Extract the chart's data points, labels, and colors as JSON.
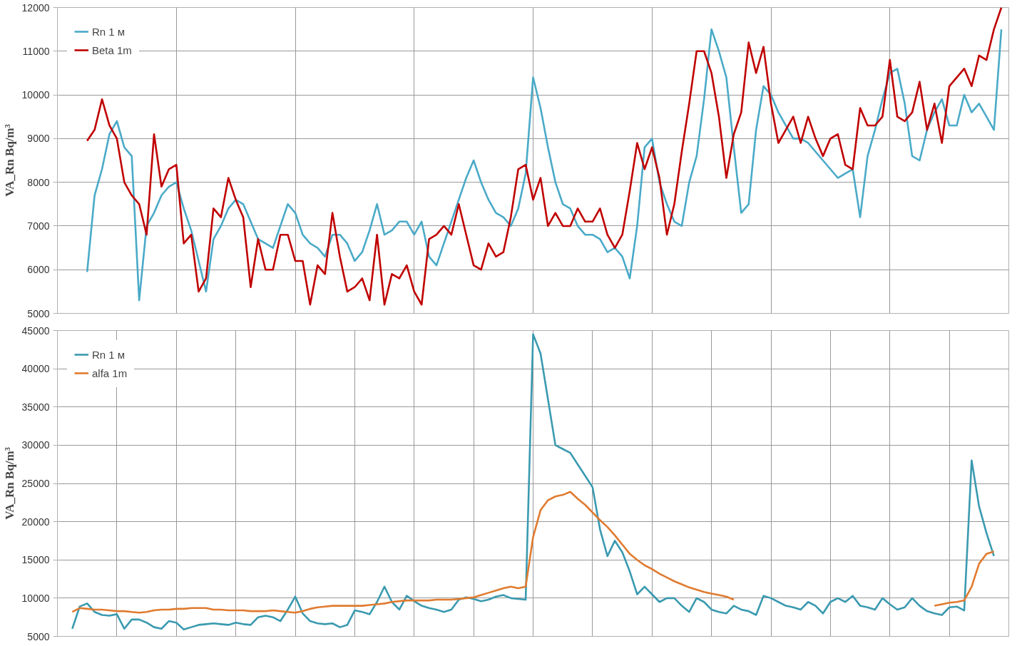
{
  "chart_data": [
    {
      "type": "line",
      "ylabel": "VA_Rn Bq/m³",
      "categories": [
        null,
        null,
        null,
        null,
        null,
        null,
        null,
        null,
        null,
        null,
        null,
        null,
        null,
        null,
        null,
        null,
        null,
        null,
        null,
        null,
        null,
        null,
        null,
        null,
        null,
        null,
        null,
        null,
        null,
        null,
        null,
        null,
        null,
        null,
        null,
        null,
        null,
        null,
        null,
        null,
        null,
        null,
        null,
        null,
        null,
        null,
        null,
        null,
        null,
        null,
        null,
        null,
        null,
        null,
        null,
        null,
        null,
        null,
        null,
        null,
        null,
        null,
        null,
        null,
        null,
        null,
        null,
        null,
        null,
        null,
        null,
        null,
        null,
        null,
        null,
        null,
        null,
        null,
        null,
        null,
        null,
        null,
        null,
        null,
        null,
        null,
        null,
        null,
        null,
        null,
        null,
        null,
        null,
        null,
        null,
        null,
        null,
        null,
        null,
        null,
        null,
        null,
        null,
        null,
        null,
        null,
        null,
        null,
        null,
        null,
        null,
        null,
        null,
        null,
        null,
        null,
        null,
        null,
        null,
        null,
        null,
        null,
        null,
        null,
        null,
        null,
        null,
        null,
        null
      ],
      "ylim": [
        5000,
        12000
      ],
      "yticks": [
        5000,
        6000,
        7000,
        8000,
        9000,
        10000,
        11000,
        12000
      ],
      "grid": true,
      "legend": "top left",
      "series": [
        {
          "name": "Rn 1 м",
          "color": "#4aaac8",
          "values": [
            null,
            null,
            null,
            null,
            5950,
            7700,
            8300,
            9100,
            9400,
            8800,
            8600,
            5300,
            7000,
            7300,
            7700,
            7900,
            8000,
            7400,
            6900,
            6200,
            5500,
            6700,
            7000,
            7400,
            7600,
            7500,
            7100,
            6700,
            6600,
            6500,
            7000,
            7500,
            7300,
            6800,
            6600,
            6500,
            6300,
            6800,
            6800,
            6600,
            6200,
            6400,
            6900,
            7500,
            6800,
            6900,
            7100,
            7100,
            6800,
            7100,
            6300,
            6100,
            6600,
            7100,
            7600,
            8100,
            8500,
            8000,
            7600,
            7300,
            7200,
            7000,
            7400,
            8200,
            10400,
            9700,
            8800,
            8000,
            7500,
            7400,
            7000,
            6800,
            6800,
            6700,
            6400,
            6500,
            6300,
            5800,
            7000,
            8800,
            9000,
            8000,
            7500,
            7100,
            7000,
            8000,
            8600,
            9900,
            11500,
            11000,
            10400,
            8800,
            7300,
            7500,
            9200,
            10200,
            10000,
            9600,
            9300,
            9000,
            9000,
            8900,
            8700,
            8500,
            8300,
            8100,
            8200,
            8300,
            7200,
            8600,
            9200,
            9900,
            10500,
            10600,
            9800,
            8600,
            8500,
            9200,
            9600,
            9900,
            9300,
            9300,
            10000,
            9600,
            9800,
            9500,
            9200,
            11500,
            null
          ]
        },
        {
          "name": "Beta 1m",
          "color": "#c00000",
          "values": [
            null,
            null,
            null,
            null,
            8950,
            9200,
            9900,
            9300,
            9000,
            8000,
            7700,
            7500,
            6800,
            9100,
            7900,
            8300,
            8400,
            6600,
            6800,
            5500,
            5800,
            7400,
            7200,
            8100,
            7600,
            7200,
            5600,
            6700,
            6000,
            6000,
            6800,
            6800,
            6200,
            6200,
            5200,
            6100,
            5900,
            7300,
            6300,
            5500,
            5600,
            5800,
            5300,
            6800,
            5200,
            5900,
            5800,
            6100,
            5500,
            5200,
            6700,
            6800,
            7000,
            6800,
            7500,
            6800,
            6100,
            6000,
            6600,
            6300,
            6400,
            7200,
            8300,
            8400,
            7600,
            8100,
            7000,
            7300,
            7000,
            7000,
            7400,
            7100,
            7100,
            7400,
            6800,
            6500,
            6800,
            7800,
            8900,
            8300,
            8800,
            8100,
            6800,
            7500,
            8700,
            9800,
            11000,
            11000,
            10500,
            9500,
            8100,
            9100,
            9600,
            11200,
            10500,
            11100,
            9800,
            8900,
            9200,
            9500,
            8900,
            9500,
            9000,
            8600,
            9000,
            9100,
            8400,
            8300,
            9700,
            9300,
            9300,
            9500,
            10800,
            9500,
            9400,
            9600,
            10300,
            9200,
            9800,
            8900,
            10200,
            10400,
            10600,
            10200,
            10900,
            10800,
            11500,
            12000,
            null
          ]
        }
      ]
    },
    {
      "type": "line",
      "ylabel": "VA_Rn Bq/m³",
      "categories": [
        null,
        null,
        null,
        null,
        null,
        null,
        null,
        null,
        null,
        null,
        null,
        null,
        null,
        null,
        null,
        null,
        null,
        null,
        null,
        null,
        null,
        null,
        null,
        null,
        null,
        null,
        null,
        null,
        null,
        null,
        null,
        null,
        null,
        null,
        null,
        null,
        null,
        null,
        null,
        null,
        null,
        null,
        null,
        null,
        null,
        null,
        null,
        null,
        null,
        null,
        null,
        null,
        null,
        null,
        null,
        null,
        null,
        null,
        null,
        null,
        null,
        null,
        null,
        null,
        null,
        null,
        null,
        null,
        null,
        null,
        null,
        null,
        null,
        null,
        null,
        null,
        null,
        null,
        null,
        null,
        null,
        null,
        null,
        null,
        null,
        null,
        null,
        null,
        null,
        null,
        null,
        null,
        null,
        null,
        null,
        null,
        null,
        null,
        null,
        null,
        null,
        null,
        null,
        null,
        null,
        null,
        null,
        null,
        null,
        null,
        null,
        null,
        null,
        null,
        null,
        null,
        null,
        null,
        null,
        null,
        null,
        null,
        null,
        null,
        null,
        null,
        null,
        null,
        null
      ],
      "ylim": [
        5000,
        45000
      ],
      "yticks": [
        5000,
        10000,
        15000,
        20000,
        25000,
        30000,
        35000,
        40000,
        45000
      ],
      "grid": true,
      "legend": "top left",
      "series": [
        {
          "name": "Rn 1 м",
          "color": "#3a9ab0",
          "values": [
            null,
            null,
            6000,
            8900,
            9300,
            8200,
            7800,
            7700,
            7900,
            6000,
            7200,
            7200,
            6800,
            6200,
            6000,
            7000,
            6800,
            5900,
            6200,
            6500,
            6600,
            6700,
            6600,
            6500,
            6800,
            6600,
            6500,
            7500,
            7700,
            7500,
            7000,
            8500,
            10200,
            8000,
            7000,
            6700,
            6600,
            6700,
            6200,
            6500,
            8400,
            8200,
            7900,
            9500,
            11500,
            9500,
            8500,
            10300,
            9600,
            9000,
            8700,
            8500,
            8200,
            8500,
            9800,
            10100,
            9900,
            9600,
            9800,
            10200,
            10400,
            10000,
            9900,
            9800,
            44500,
            42000,
            36000,
            30000,
            29500,
            29000,
            27500,
            26000,
            24500,
            19000,
            15500,
            17500,
            16000,
            13500,
            10500,
            11500,
            10500,
            9500,
            10000,
            10000,
            9000,
            8200,
            10000,
            9500,
            8500,
            8200,
            8000,
            9000,
            8500,
            8300,
            7800,
            10300,
            10000,
            9500,
            9000,
            8800,
            8500,
            9500,
            9000,
            8000,
            9500,
            10000,
            9500,
            10300,
            9000,
            8800,
            8500,
            10000,
            9200,
            8500,
            8800,
            10000,
            9000,
            8300,
            8000,
            7800,
            8800,
            8900,
            8400,
            28000,
            22000,
            18500,
            15500,
            null,
            null
          ]
        },
        {
          "name": "alfa 1m",
          "color": "#e07b30",
          "values": [
            null,
            null,
            8200,
            8700,
            8600,
            8500,
            8500,
            8400,
            8300,
            8300,
            8200,
            8100,
            8200,
            8400,
            8500,
            8500,
            8600,
            8600,
            8700,
            8700,
            8700,
            8500,
            8500,
            8400,
            8400,
            8400,
            8300,
            8300,
            8300,
            8400,
            8300,
            8200,
            8100,
            8300,
            8600,
            8800,
            8900,
            9000,
            9000,
            9000,
            9000,
            9000,
            9100,
            9200,
            9300,
            9500,
            9600,
            9700,
            9700,
            9700,
            9700,
            9800,
            9800,
            9800,
            9900,
            10000,
            10100,
            10400,
            10700,
            11000,
            11300,
            11500,
            11300,
            11500,
            18000,
            21500,
            22800,
            23300,
            23500,
            23900,
            23000,
            22200,
            21200,
            20200,
            19300,
            18200,
            17000,
            15800,
            15000,
            14300,
            13800,
            13200,
            12700,
            12200,
            11800,
            11400,
            11100,
            10800,
            10600,
            10400,
            10200,
            9800,
            null,
            null,
            null,
            null,
            null,
            null,
            null,
            null,
            null,
            null,
            null,
            null,
            null,
            null,
            null,
            null,
            null,
            null,
            null,
            null,
            null,
            null,
            null,
            null,
            null,
            null,
            9000,
            9200,
            9400,
            9500,
            9700,
            11500,
            14500,
            15800,
            16100,
            null,
            null
          ]
        }
      ]
    }
  ]
}
